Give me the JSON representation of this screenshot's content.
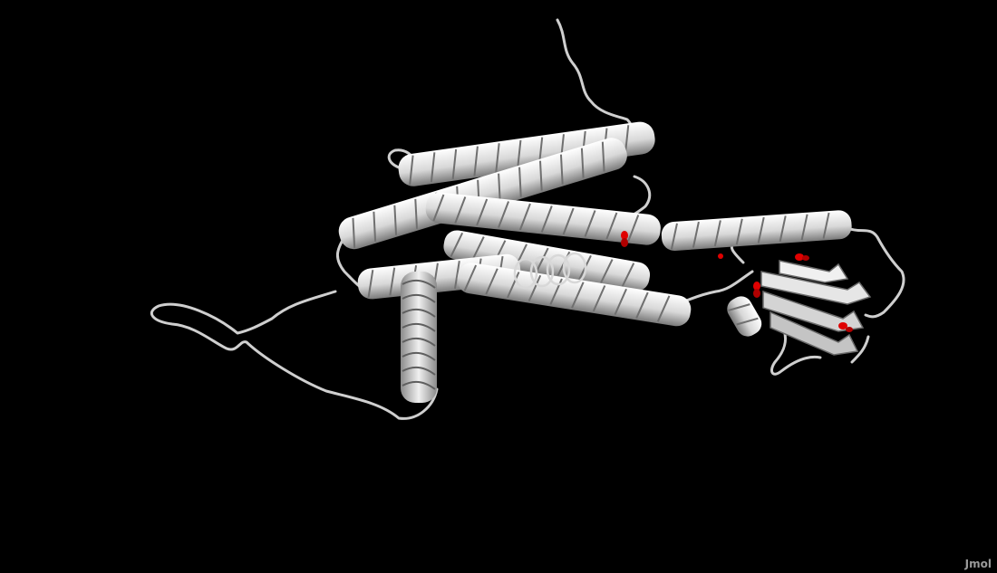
{
  "viewer": {
    "watermark": "Jmol",
    "background": "#000000",
    "ribbon_color": "#e8e8e8",
    "ribbon_shade": "#8c8c8c",
    "ligand_color": "#e00000",
    "ligand_count": 5
  }
}
